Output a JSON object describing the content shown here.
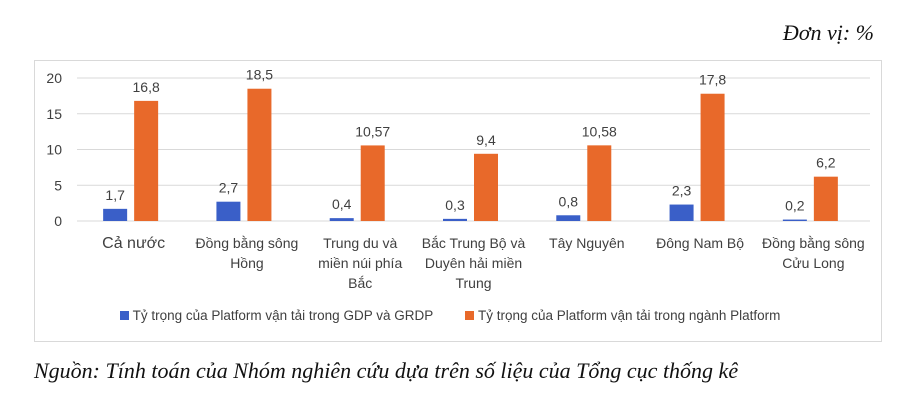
{
  "unit_label": "Đơn vị: %",
  "source": "Nguồn: Tính toán của Nhóm nghiên cứu dựa trên số liệu của Tổng cục thống kê",
  "chart_data": {
    "type": "bar",
    "categories": [
      [
        "Cả nước"
      ],
      [
        "Đồng bằng sông",
        "Hồng"
      ],
      [
        "Trung du và",
        "miền núi phía",
        "Bắc"
      ],
      [
        "Bắc Trung Bộ và",
        "Duyên hải miền",
        "Trung"
      ],
      [
        "Tây Nguyên"
      ],
      [
        "Đông Nam Bộ"
      ],
      [
        "Đồng bằng sông",
        "Cửu Long"
      ]
    ],
    "series": [
      {
        "name": "Tỷ trọng của Platform vận tải trong GDP và GRDP",
        "color": "#3a5fc8",
        "values": [
          1.7,
          2.7,
          0.4,
          0.3,
          0.8,
          2.3,
          0.2
        ],
        "labels": [
          "1,7",
          "2,7",
          "0,4",
          "0,3",
          "0,8",
          "2,3",
          "0,2"
        ]
      },
      {
        "name": "Tỷ trọng của Platform vận tải trong ngành Platform",
        "color": "#e8692a",
        "values": [
          16.8,
          18.5,
          10.57,
          9.4,
          10.58,
          17.8,
          6.2
        ],
        "labels": [
          "16,8",
          "18,5",
          "10,57",
          "9,4",
          "10,58",
          "17,8",
          "6,2"
        ]
      }
    ],
    "yticks": [
      "0",
      "5",
      "10",
      "15",
      "20"
    ],
    "ylim": [
      0,
      20
    ],
    "grid": true,
    "legend": "bottom"
  }
}
